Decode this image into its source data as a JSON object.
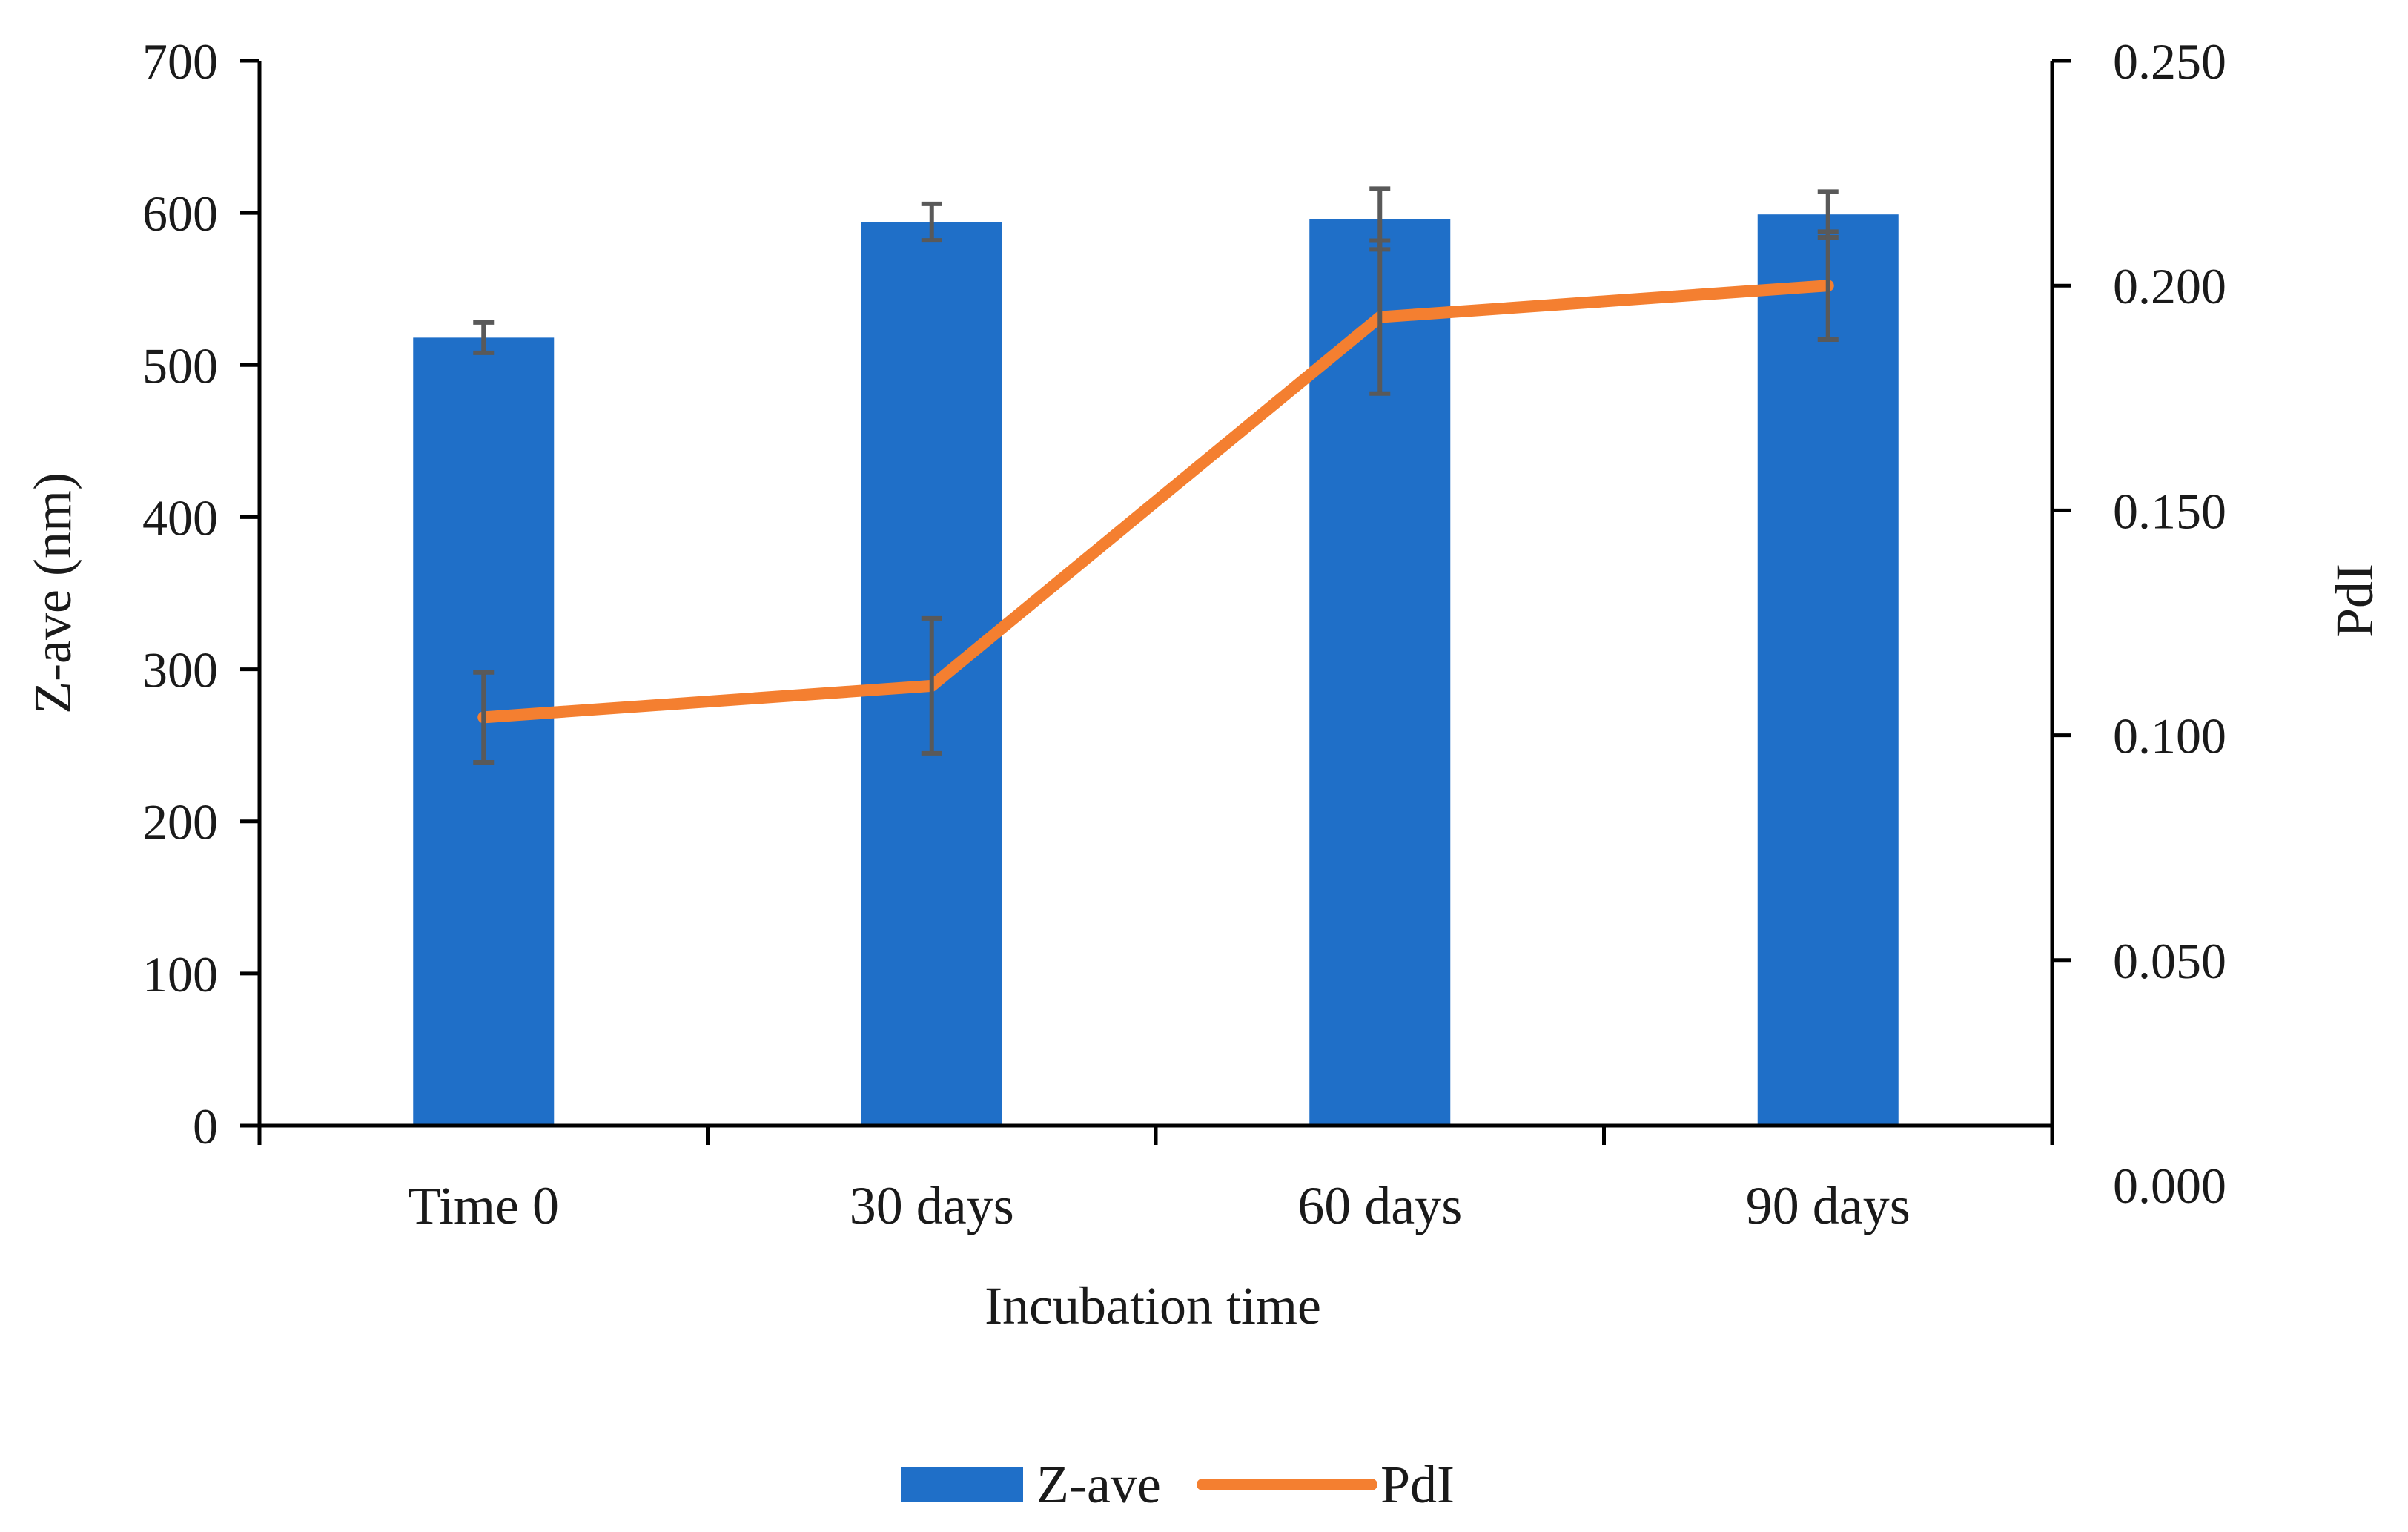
{
  "chart_data": {
    "type": "bar-line-combo",
    "title": "",
    "xlabel": "Incubation time",
    "ylabel": "Z-ave (nm)",
    "y2label": "PdI",
    "categories": [
      "Time 0",
      "30 days",
      "60 days",
      "90 days"
    ],
    "ylim": [
      0,
      700
    ],
    "yticks": [
      0,
      100,
      200,
      300,
      400,
      500,
      600,
      700
    ],
    "y2lim": [
      0,
      0.25
    ],
    "y2ticks": [
      0.0,
      0.05,
      0.1,
      0.15,
      0.2,
      0.25
    ],
    "y2tick_labels": [
      "0.000",
      "0.050",
      "0.100",
      "0.150",
      "0.200",
      "0.250"
    ],
    "series": [
      {
        "name": "Z-ave",
        "type": "bar",
        "axis": "left",
        "color": "#1f6fc8",
        "values": [
          518,
          594,
          596,
          599
        ],
        "errors": [
          10,
          12,
          20,
          15
        ]
      },
      {
        "name": "PdI",
        "type": "line",
        "axis": "right",
        "color": "#f47f30",
        "values": [
          0.104,
          0.111,
          0.193,
          0.2
        ],
        "errors": [
          0.01,
          0.015,
          0.017,
          0.012
        ]
      }
    ],
    "legend": {
      "position": "bottom-center",
      "entries": [
        "Z-ave",
        "PdI"
      ]
    },
    "error_bar_color": "#595959"
  }
}
